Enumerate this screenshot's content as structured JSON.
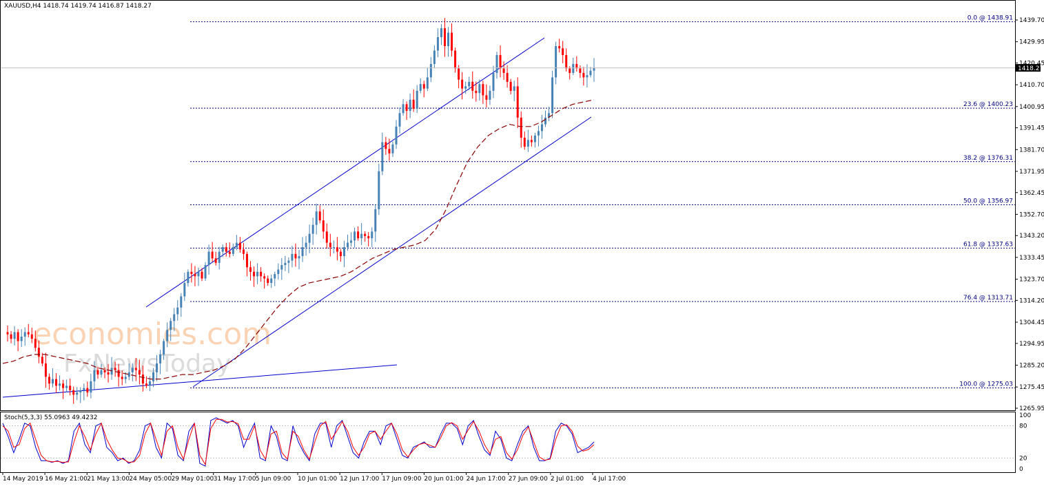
{
  "header": {
    "symbol": "XAUUSD,H4",
    "quote": "1418.74 1419.74 1416.87 1418.27"
  },
  "stoch_header": "Stoch(5,3,3) 55.0963 49.4232",
  "colors": {
    "bull": "#4682b4",
    "bear": "#ff0000",
    "ma": "#8b0000",
    "channel": "#0000cd",
    "fib": "#000080",
    "stoch_main": "#0000cd",
    "stoch_signal": "#ff0000",
    "grid_text": "#000000",
    "price_tag_bg": "#000000"
  },
  "watermark": {
    "line1": "economies.com",
    "line2": "FxNewsToday"
  },
  "chart_data": [
    {
      "type": "candlestick",
      "title": "XAUUSD,H4",
      "current_price": "1418.27",
      "ylim": [
        1262,
        1446
      ],
      "y_ticks": [
        "1439.70",
        "1429.95",
        "1420.45",
        "1410.70",
        "1400.95",
        "1391.45",
        "1381.70",
        "1371.95",
        "1362.45",
        "1352.70",
        "1343.20",
        "1333.45",
        "1323.70",
        "1314.20",
        "1304.45",
        "1294.95",
        "1285.20",
        "1275.45",
        "1265.95"
      ],
      "x_labels": [
        "14 May 2019",
        "16 May 21:00",
        "21 May 13:00",
        "24 May 05:00",
        "29 May 01:00",
        "31 May 17:00",
        "5 Jun 09:00",
        "10 Jun 01:00",
        "12 Jun 17:00",
        "17 Jun 09:00",
        "20 Jun 01:00",
        "24 Jun 17:00",
        "27 Jun 09:00",
        "2 Jul 01:00",
        "4 Jul 17:00"
      ],
      "price_path": [
        1300,
        1299,
        1297,
        1300,
        1296,
        1298,
        1300,
        1299,
        1297,
        1293,
        1289,
        1286,
        1280,
        1277,
        1279,
        1276,
        1277,
        1275,
        1276,
        1274,
        1272,
        1273,
        1274,
        1275,
        1273,
        1278,
        1283,
        1281,
        1283,
        1282,
        1281,
        1284,
        1283,
        1280,
        1279,
        1280,
        1282,
        1284,
        1283,
        1281,
        1277,
        1276,
        1278,
        1282,
        1286,
        1290,
        1296,
        1301,
        1305,
        1308,
        1311,
        1316,
        1322,
        1327,
        1326,
        1325,
        1327,
        1324,
        1330,
        1336,
        1333,
        1331,
        1336,
        1338,
        1336,
        1335,
        1338,
        1340,
        1337,
        1335,
        1329,
        1327,
        1325,
        1327,
        1325,
        1324,
        1322,
        1324,
        1326,
        1328,
        1330,
        1331,
        1332,
        1335,
        1333,
        1334,
        1338,
        1340,
        1344,
        1348,
        1354,
        1350,
        1345,
        1340,
        1338,
        1338,
        1336,
        1334,
        1338,
        1340,
        1341,
        1345,
        1342,
        1344,
        1343,
        1342,
        1345,
        1355,
        1372,
        1385,
        1382,
        1380,
        1384,
        1392,
        1398,
        1402,
        1399,
        1404,
        1400,
        1408,
        1411,
        1409,
        1414,
        1420,
        1426,
        1432,
        1436,
        1428,
        1434,
        1426,
        1418,
        1413,
        1409,
        1410,
        1412,
        1408,
        1407,
        1411,
        1406,
        1404,
        1408,
        1416,
        1424,
        1418,
        1416,
        1412,
        1408,
        1410,
        1396,
        1387,
        1383,
        1386,
        1385,
        1388,
        1390,
        1393,
        1396,
        1398,
        1414,
        1428,
        1427,
        1424,
        1418,
        1416,
        1420,
        1418,
        1416,
        1414,
        1415,
        1417,
        1418.27
      ],
      "ma_path": [
        1286,
        1287,
        1289,
        1290,
        1290,
        1289,
        1288,
        1287,
        1286,
        1284,
        1283,
        1282,
        1281,
        1280,
        1279,
        1279,
        1280,
        1281,
        1281,
        1282,
        1283,
        1285,
        1288,
        1293,
        1299,
        1305,
        1311,
        1316,
        1320,
        1322,
        1323,
        1324,
        1325,
        1327,
        1330,
        1333,
        1335,
        1337,
        1338,
        1339,
        1341,
        1346,
        1355,
        1366,
        1376,
        1383,
        1388,
        1391,
        1393,
        1392,
        1392,
        1394,
        1397,
        1400,
        1402,
        1403,
        1404
      ],
      "fib_levels": [
        {
          "label": "0.0 @ 1438.91",
          "value": 1438.91
        },
        {
          "label": "23.6 @ 1400.23",
          "value": 1400.23
        },
        {
          "label": "38.2 @ 1376.31",
          "value": 1376.31
        },
        {
          "label": "50.0 @ 1356.97",
          "value": 1356.97
        },
        {
          "label": "61.8 @ 1337.63",
          "value": 1337.63
        },
        {
          "label": "76.4 @ 1313.71",
          "value": 1313.71
        },
        {
          "label": "100.0 @ 1275.03",
          "value": 1275.03
        }
      ]
    },
    {
      "type": "line",
      "title": "Stoch(5,3,3)",
      "ylim": [
        0,
        100
      ],
      "y_ticks": [
        "100",
        "80",
        "20",
        "0"
      ],
      "levels": [
        80,
        20
      ],
      "series": [
        {
          "values": [
            85,
            60,
            30,
            55,
            85,
            80,
            40,
            15,
            15,
            12,
            15,
            10,
            15,
            70,
            85,
            45,
            30,
            80,
            85,
            40,
            30,
            15,
            20,
            10,
            15,
            35,
            80,
            85,
            40,
            20,
            85,
            75,
            25,
            15,
            70,
            85,
            10,
            5,
            90,
            95,
            90,
            85,
            90,
            80,
            40,
            65,
            85,
            20,
            15,
            80,
            60,
            20,
            15,
            80,
            50,
            30,
            15,
            65,
            85,
            85,
            40,
            80,
            90,
            60,
            30,
            20,
            50,
            70,
            70,
            45,
            80,
            85,
            55,
            25,
            20,
            40,
            45,
            50,
            40,
            40,
            65,
            85,
            85,
            75,
            45,
            80,
            90,
            60,
            35,
            25,
            70,
            55,
            20,
            15,
            45,
            70,
            80,
            40,
            15,
            15,
            20,
            70,
            85,
            80,
            65,
            30,
            35,
            40,
            50
          ]
        },
        {
          "values": [
            80,
            70,
            40,
            45,
            75,
            85,
            55,
            25,
            15,
            13,
            14,
            12,
            13,
            50,
            80,
            60,
            35,
            65,
            85,
            55,
            35,
            20,
            18,
            12,
            13,
            25,
            65,
            85,
            55,
            25,
            70,
            80,
            40,
            18,
            55,
            85,
            25,
            8,
            75,
            92,
            92,
            87,
            88,
            84,
            55,
            55,
            80,
            35,
            18,
            65,
            70,
            30,
            18,
            70,
            60,
            35,
            18,
            50,
            80,
            88,
            55,
            70,
            88,
            70,
            40,
            25,
            40,
            65,
            70,
            55,
            70,
            85,
            65,
            35,
            22,
            35,
            45,
            48,
            44,
            40,
            58,
            80,
            86,
            80,
            55,
            72,
            88,
            70,
            45,
            28,
            55,
            60,
            30,
            18,
            35,
            62,
            78,
            50,
            22,
            16,
            18,
            55,
            80,
            82,
            70,
            42,
            33,
            36,
            45
          ]
        }
      ]
    }
  ]
}
